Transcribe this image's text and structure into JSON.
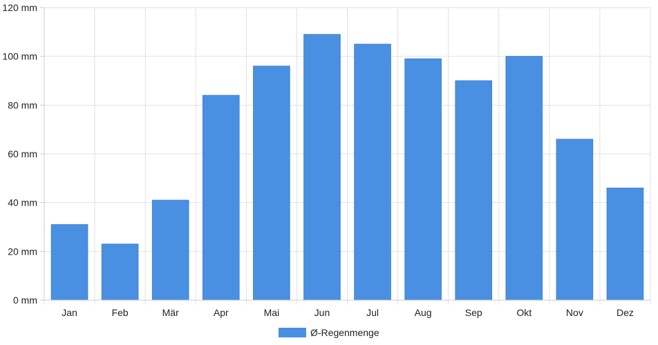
{
  "chart_data": {
    "type": "bar",
    "categories": [
      "Jan",
      "Feb",
      "Mär",
      "Apr",
      "Mai",
      "Jun",
      "Jul",
      "Aug",
      "Sep",
      "Okt",
      "Nov",
      "Dez"
    ],
    "series": [
      {
        "name": "Ø-Regenmenge",
        "values": [
          31,
          23,
          41,
          84,
          96,
          109,
          105,
          99,
          90,
          100,
          66,
          46
        ],
        "color": "#4a90e2"
      }
    ],
    "title": "",
    "xlabel": "",
    "ylabel": "",
    "ylim": [
      0,
      120
    ],
    "yticks": [
      0,
      20,
      40,
      60,
      80,
      100,
      120
    ],
    "ytick_unit": "mm",
    "grid": true,
    "legend_position": "bottom-center"
  }
}
